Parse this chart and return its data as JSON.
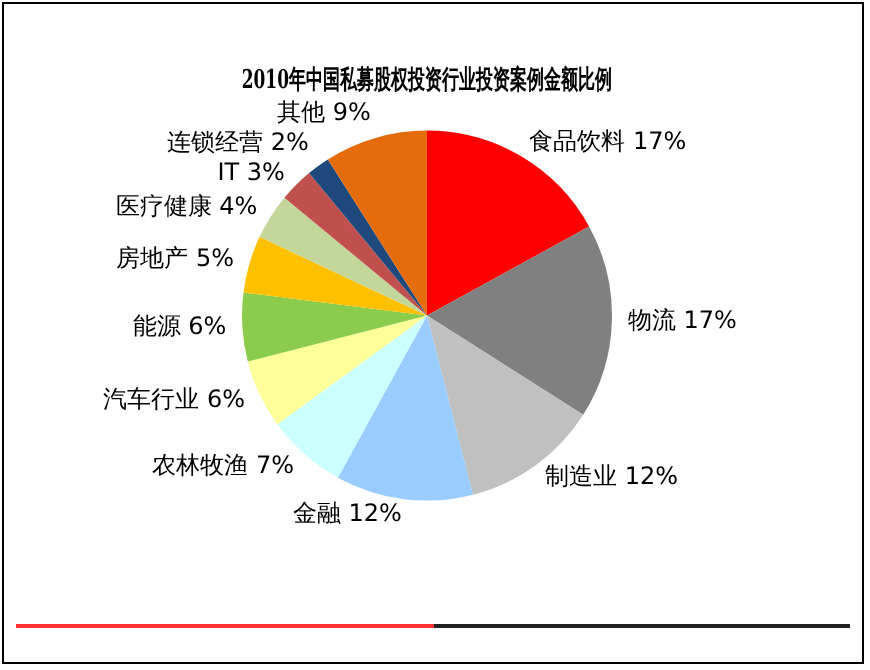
{
  "chart_data": {
    "type": "pie",
    "title": "2010年中国私募股权投资行业投资案例金额比例",
    "categories": [
      "食品饮料",
      "物流",
      "制造业",
      "金融",
      "农林牧渔",
      "汽车行业",
      "能源",
      "房地产",
      "医疗健康",
      "IT",
      "连锁经营",
      "其他"
    ],
    "values": [
      17,
      17,
      12,
      12,
      7,
      6,
      6,
      5,
      4,
      3,
      2,
      9
    ],
    "value_labels": [
      "17%",
      "17%",
      "12%",
      "12%",
      "7%",
      "6%",
      "6%",
      "5%",
      "4%",
      "3%",
      "2%",
      "9%"
    ],
    "colors": [
      "#ff0000",
      "#808080",
      "#c0c0c0",
      "#99ccff",
      "#ccffff",
      "#ffff99",
      "#8ccc4c",
      "#ffc000",
      "#c4d79b",
      "#c0504d",
      "#1f497d",
      "#e46c0a"
    ],
    "legend": false
  }
}
